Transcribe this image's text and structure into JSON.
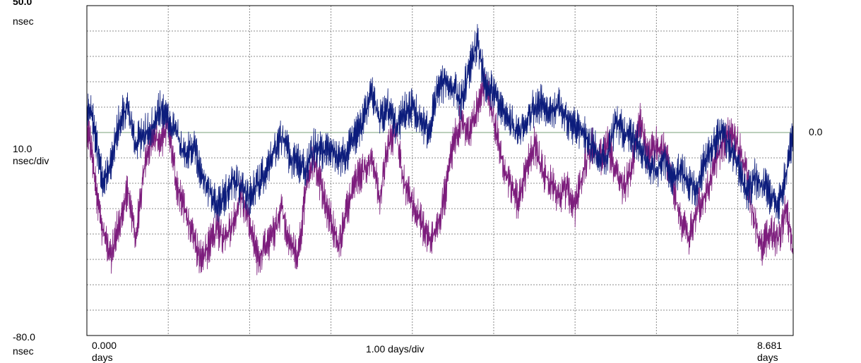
{
  "chart_data": {
    "type": "line",
    "y_axis": {
      "max_value": "50.0",
      "max_unit": "nsec",
      "scale_value": "10.0",
      "scale_unit": "nsec/div",
      "min_value": "-80.0",
      "min_unit": "nsec",
      "ylim": [
        -80,
        50
      ],
      "reference_value": "0.0",
      "reference_y": 0
    },
    "x_axis": {
      "start_value": "0.000",
      "start_unit": "days",
      "scale_label": "1.00 days/div",
      "end_value": "8.681",
      "end_unit": "days",
      "xlim": [
        0,
        8.681
      ]
    },
    "grid": {
      "x_divisions": 8.681,
      "y_divisions": 13
    },
    "colors": {
      "series_a": "#0c1c7c",
      "series_b": "#7c1c7c",
      "reference": "#7aa07a",
      "grid": "#8c8c8c"
    },
    "series": [
      {
        "color_key": "series_a",
        "x": [
          0,
          0.05,
          0.12,
          0.2,
          0.3,
          0.4,
          0.5,
          0.6,
          0.7,
          0.8,
          0.9,
          1.0,
          1.1,
          1.2,
          1.3,
          1.4,
          1.5,
          1.6,
          1.7,
          1.8,
          1.9,
          2.0,
          2.1,
          2.2,
          2.3,
          2.4,
          2.5,
          2.6,
          2.7,
          2.8,
          2.9,
          3.0,
          3.1,
          3.2,
          3.3,
          3.4,
          3.5,
          3.6,
          3.7,
          3.8,
          3.9,
          4.0,
          4.1,
          4.2,
          4.3,
          4.4,
          4.5,
          4.6,
          4.7,
          4.8,
          4.9,
          5.0,
          5.1,
          5.2,
          5.3,
          5.4,
          5.5,
          5.6,
          5.7,
          5.8,
          5.9,
          6.0,
          6.1,
          6.2,
          6.3,
          6.4,
          6.5,
          6.6,
          6.7,
          6.8,
          6.9,
          7.0,
          7.1,
          7.2,
          7.3,
          7.4,
          7.5,
          7.6,
          7.7,
          7.8,
          7.9,
          8.0,
          8.1,
          8.2,
          8.3,
          8.4,
          8.5,
          8.6,
          8.681
        ],
        "y": [
          8,
          10,
          -5,
          -20,
          -12,
          5,
          10,
          -5,
          0,
          2,
          10,
          5,
          0,
          -10,
          -5,
          -15,
          -22,
          -28,
          -25,
          -18,
          -22,
          -25,
          -20,
          -15,
          -8,
          -2,
          -10,
          -12,
          -15,
          -5,
          -8,
          -5,
          -10,
          -8,
          -2,
          5,
          15,
          5,
          10,
          2,
          8,
          10,
          5,
          0,
          15,
          20,
          18,
          12,
          25,
          35,
          20,
          15,
          10,
          5,
          -2,
          5,
          10,
          12,
          8,
          10,
          5,
          2,
          0,
          -5,
          -8,
          -10,
          5,
          0,
          -2,
          -5,
          -12,
          -15,
          -10,
          -18,
          -15,
          -20,
          -22,
          -10,
          -5,
          0,
          -5,
          -12,
          -25,
          -18,
          -20,
          -25,
          -28,
          -15,
          0
        ]
      },
      {
        "color_key": "series_b",
        "x": [
          0,
          0.05,
          0.12,
          0.2,
          0.3,
          0.4,
          0.5,
          0.6,
          0.7,
          0.8,
          0.9,
          1.0,
          1.1,
          1.2,
          1.3,
          1.4,
          1.5,
          1.6,
          1.7,
          1.8,
          1.9,
          2.0,
          2.1,
          2.2,
          2.3,
          2.4,
          2.5,
          2.6,
          2.7,
          2.8,
          2.9,
          3.0,
          3.1,
          3.2,
          3.3,
          3.4,
          3.5,
          3.6,
          3.7,
          3.8,
          3.9,
          4.0,
          4.1,
          4.2,
          4.3,
          4.4,
          4.5,
          4.6,
          4.7,
          4.8,
          4.9,
          5.0,
          5.1,
          5.2,
          5.3,
          5.4,
          5.5,
          5.6,
          5.7,
          5.8,
          5.9,
          6.0,
          6.1,
          6.2,
          6.3,
          6.4,
          6.5,
          6.6,
          6.7,
          6.8,
          6.9,
          7.0,
          7.1,
          7.2,
          7.3,
          7.4,
          7.5,
          7.6,
          7.7,
          7.8,
          7.9,
          8.0,
          8.1,
          8.2,
          8.3,
          8.4,
          8.5,
          8.6,
          8.681
        ],
        "y": [
          3,
          -5,
          -25,
          -40,
          -48,
          -35,
          -22,
          -42,
          -15,
          0,
          -5,
          5,
          -20,
          -30,
          -40,
          -50,
          -45,
          -38,
          -42,
          -35,
          -25,
          -35,
          -50,
          -45,
          -40,
          -30,
          -45,
          -48,
          -20,
          -10,
          -25,
          -35,
          -45,
          -30,
          -20,
          -15,
          -10,
          -25,
          -5,
          0,
          -20,
          -28,
          -35,
          -42,
          -38,
          -25,
          -5,
          5,
          0,
          10,
          20,
          5,
          -10,
          -20,
          -28,
          -15,
          -5,
          -15,
          -20,
          -25,
          -22,
          -30,
          -15,
          -5,
          -10,
          -5,
          -15,
          -22,
          -15,
          5,
          -10,
          -5,
          -8,
          -20,
          -35,
          -42,
          -30,
          -25,
          -15,
          -5,
          0,
          -5,
          -15,
          -35,
          -45,
          -40,
          -42,
          -30,
          -48
        ]
      }
    ]
  }
}
